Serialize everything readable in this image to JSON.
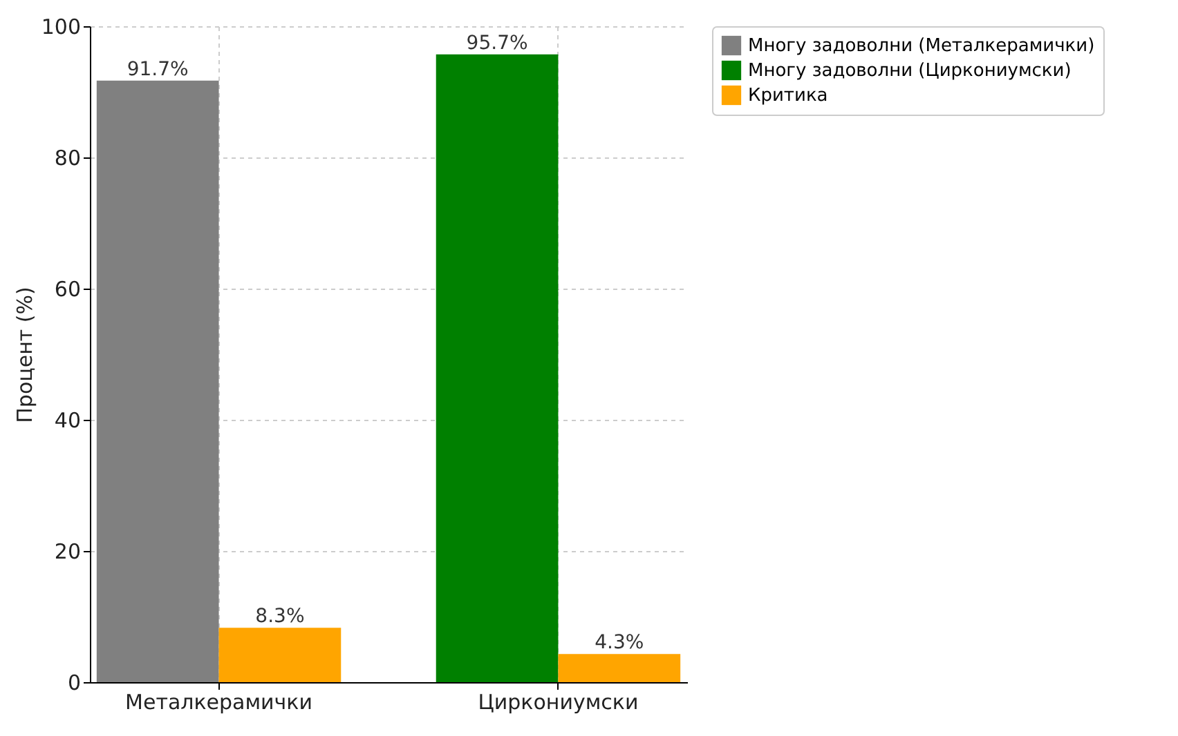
{
  "chart_data": {
    "type": "bar",
    "ylabel": "Процент (%)",
    "categories": [
      "Металкерамички",
      "Циркониумски"
    ],
    "series": [
      {
        "name": "Многу задоволни (Металкерамички)",
        "color": "#808080",
        "values": [
          91.7,
          null
        ],
        "value_labels": [
          "91.7%",
          null
        ]
      },
      {
        "name": "Многу задоволни (Циркониумски)",
        "color": "#008000",
        "values": [
          null,
          95.7
        ],
        "value_labels": [
          null,
          "95.7%"
        ]
      },
      {
        "name": "Критика",
        "color": "#ffa500",
        "values": [
          8.3,
          4.3
        ],
        "value_labels": [
          "8.3%",
          "4.3%"
        ]
      }
    ],
    "ylim": [
      0,
      100
    ],
    "yticks": [
      0,
      20,
      40,
      60,
      80,
      100
    ],
    "grid": true,
    "legend": "right"
  }
}
